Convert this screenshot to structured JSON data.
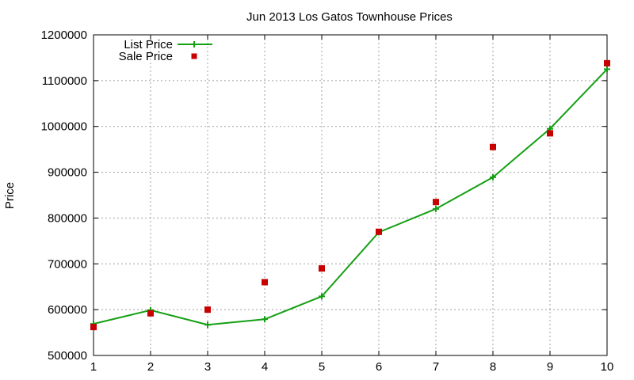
{
  "chart_data": {
    "type": "line",
    "title": "Jun 2013 Los Gatos Townhouse Prices",
    "xlabel": "",
    "ylabel": "Price",
    "x": [
      1,
      2,
      3,
      4,
      5,
      6,
      7,
      8,
      9,
      10
    ],
    "xlim": [
      1,
      10
    ],
    "ylim": [
      500000,
      1200000
    ],
    "xticks": [
      "1",
      "2",
      "3",
      "4",
      "5",
      "6",
      "7",
      "8",
      "9",
      "10"
    ],
    "yticks": [
      "500000",
      "600000",
      "700000",
      "800000",
      "900000",
      "1000000",
      "1100000",
      "1200000"
    ],
    "grid": true,
    "legend_position": "top-left",
    "series": [
      {
        "name": "List Price",
        "style": "line-with-plus-markers",
        "color": "#14a014",
        "values": [
          569000,
          599000,
          567000,
          579000,
          629000,
          769000,
          820000,
          889000,
          995000,
          1125000
        ]
      },
      {
        "name": "Sale Price",
        "style": "square-markers",
        "color": "#c80000",
        "values": [
          562000,
          592000,
          600000,
          660000,
          690000,
          770000,
          835000,
          955000,
          985000,
          1138000
        ]
      }
    ]
  }
}
